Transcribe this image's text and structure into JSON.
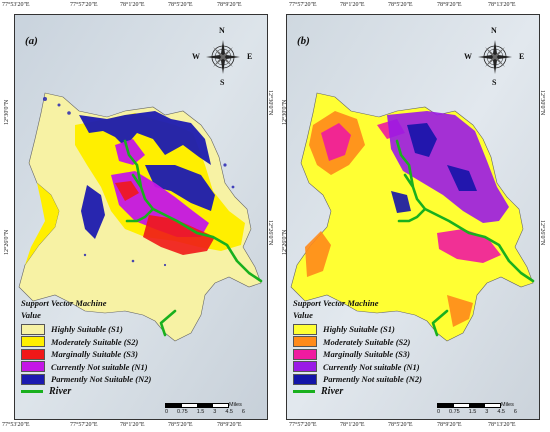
{
  "coordinates": {
    "top_left": [
      "77°53'20\"E",
      "77°57'20\"E",
      "78°1'20\"E",
      "78°5'20\"E",
      "78°9'20\"E",
      "78°13'20\"E"
    ],
    "left_side": [
      "12°30'0\"N",
      "12°26'0\"N"
    ]
  },
  "compass": {
    "n": "N",
    "s": "S",
    "e": "E",
    "w": "W"
  },
  "panels": [
    {
      "label": "(a)",
      "legend_title": "Support Vector Machine",
      "legend_sub": "Value",
      "classes": [
        {
          "label": "Highly Suitable (S1)",
          "color": "#f7f2a4"
        },
        {
          "label": "Moderately Suitable (S2)",
          "color": "#ffef00"
        },
        {
          "label": "Marginally Suitable (S3)",
          "color": "#f01818"
        },
        {
          "label": "Currently Not suitable (N1)",
          "color": "#c416e6"
        },
        {
          "label": "Parmently Not Suitable (N2)",
          "color": "#1c1ab0"
        }
      ],
      "river_label": "River"
    },
    {
      "label": "(b)",
      "legend_title": "Support Vector Machine",
      "legend_sub": "Value",
      "classes": [
        {
          "label": "Highly Suitable (S1)",
          "color": "#ffff33"
        },
        {
          "label": "Moderately Suitable (S2)",
          "color": "#ff8a1a"
        },
        {
          "label": "Marginally Suitable (S3)",
          "color": "#f01aa0"
        },
        {
          "label": "Currently Not suitable (N1)",
          "color": "#9a1ae6"
        },
        {
          "label": "Parmently Not suitable (N2)",
          "color": "#1414a8"
        }
      ],
      "river_label": "River"
    }
  ],
  "scalebar": {
    "ticks": [
      "0",
      "0.75",
      "1.5",
      "3",
      "4.5",
      "6"
    ],
    "unit": "Miles"
  },
  "river_color": "#19b01e"
}
